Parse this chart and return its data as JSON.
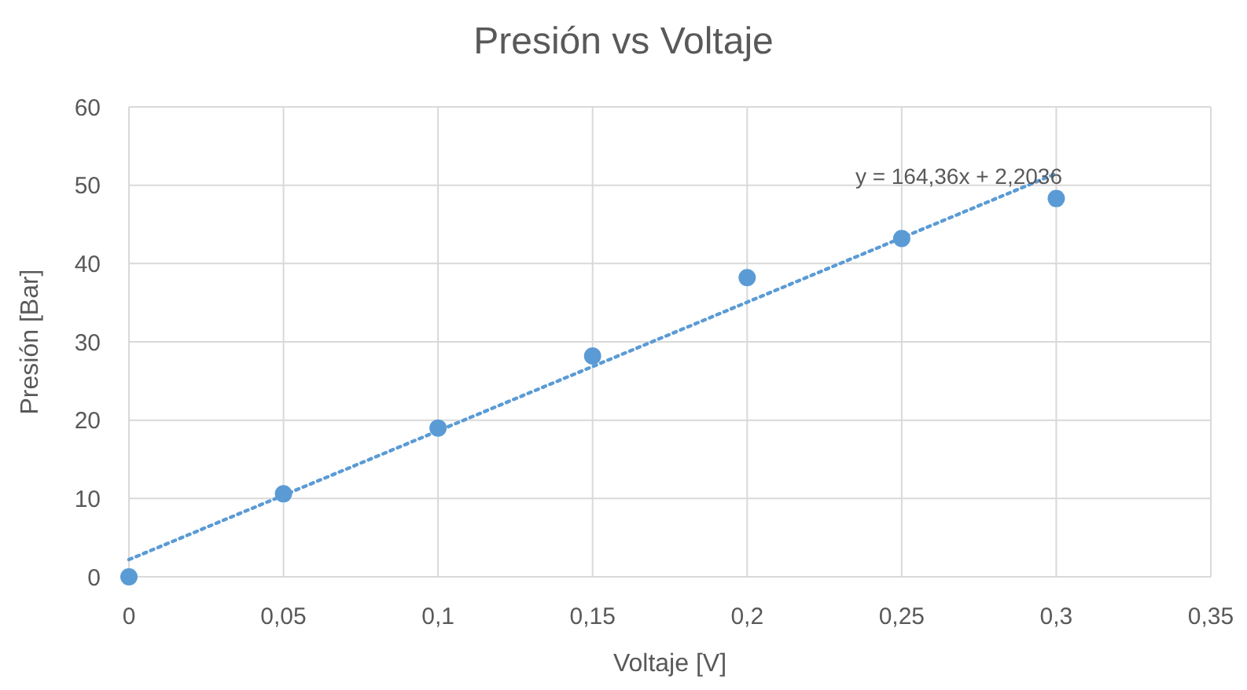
{
  "chart_data": {
    "type": "scatter",
    "title": "Presión vs Voltaje",
    "xlabel": "Voltaje [V]",
    "ylabel": "Presión [Bar]",
    "x": [
      0,
      0.05,
      0.1,
      0.15,
      0.2,
      0.25,
      0.3
    ],
    "series": [
      {
        "color": "#5b9bd5",
        "marker": "circle",
        "values": [
          0,
          10.6,
          19,
          28.2,
          38.2,
          43.2,
          48.3
        ]
      },
      {
        "type": "line",
        "color": "#5b9bd5",
        "line_style": "dotted",
        "x": [
          0,
          0.3
        ],
        "values": [
          2.2,
          51.5
        ]
      }
    ],
    "xlim": [
      0,
      0.35
    ],
    "xticks": [
      0,
      {
        "value": 0.05,
        "label": "0,05"
      },
      {
        "value": 0.1,
        "label": "0,1"
      },
      {
        "value": 0.15,
        "label": "0,15"
      },
      {
        "value": 0.2,
        "label": "0,2"
      },
      {
        "value": 0.25,
        "label": "0,25"
      },
      {
        "value": 0.3,
        "label": "0,3"
      },
      {
        "value": 0.35,
        "label": "0,35"
      }
    ],
    "ylim": [
      0,
      60
    ],
    "yticks": [
      0,
      10,
      20,
      30,
      40,
      50,
      60
    ],
    "grid": true,
    "annotations": [
      "y = 164,36x + 2,2036"
    ]
  }
}
